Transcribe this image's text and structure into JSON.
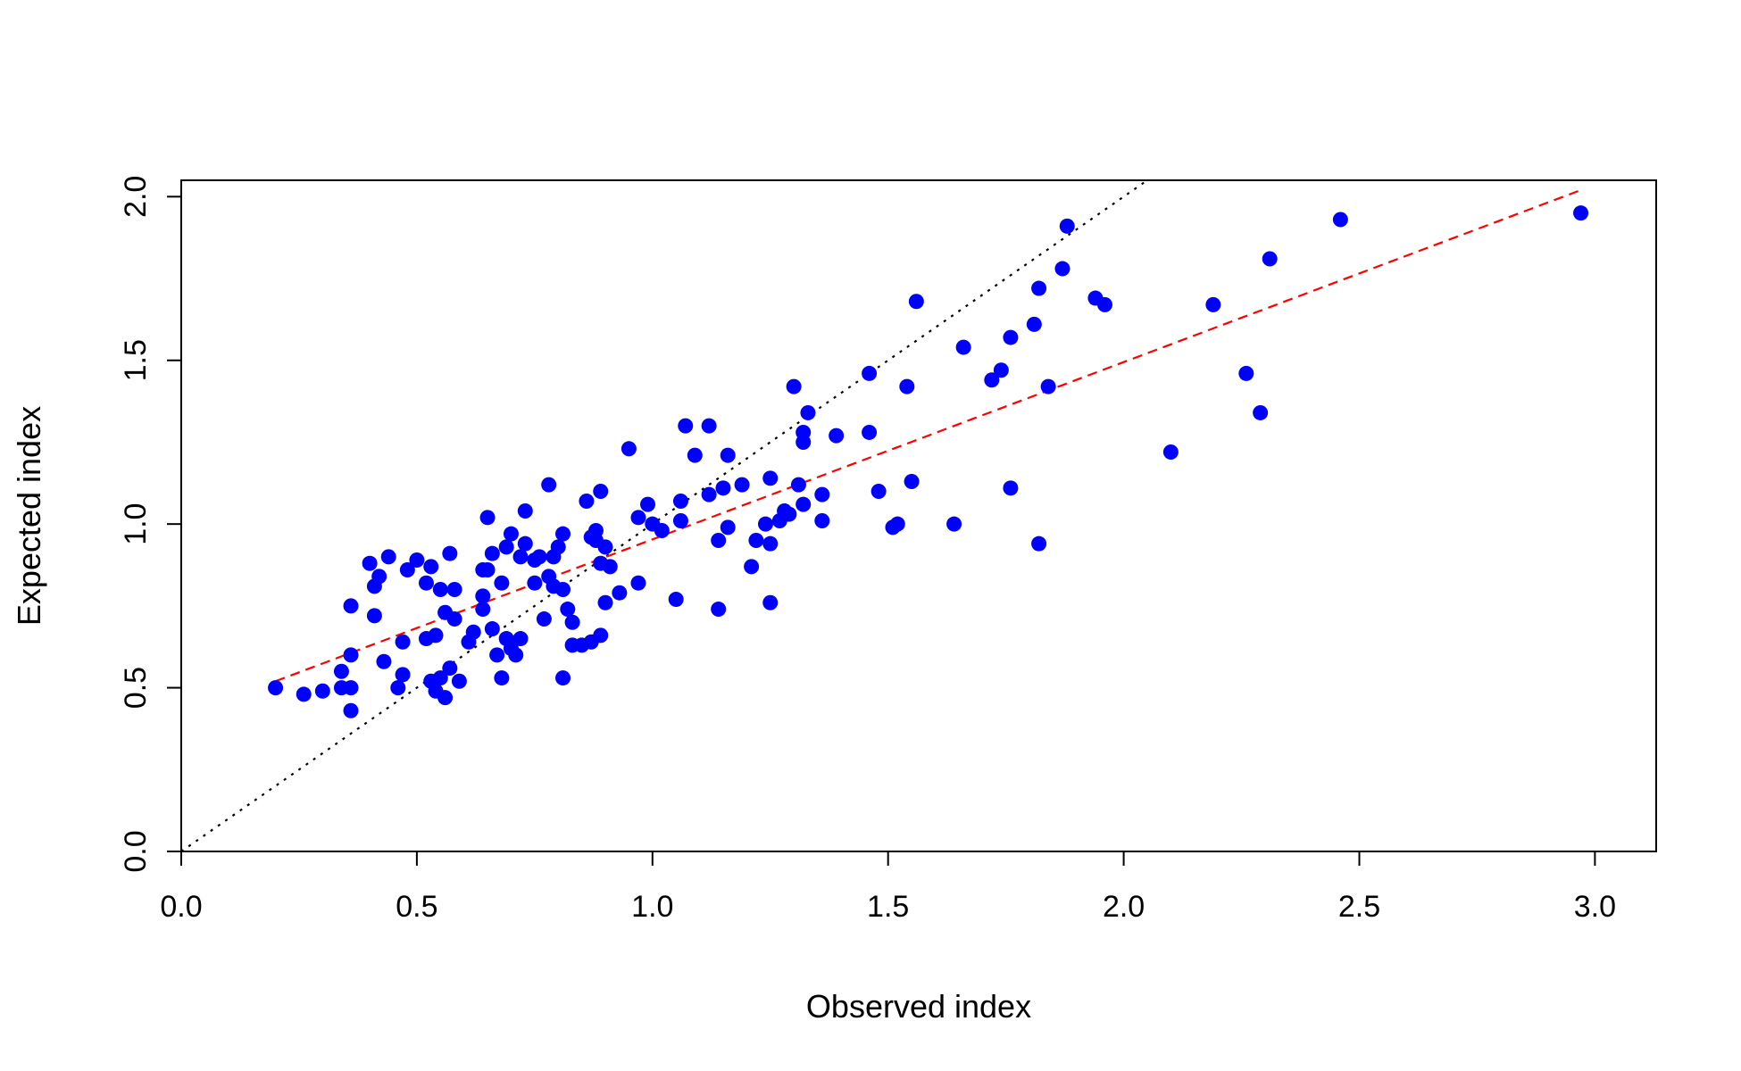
{
  "chart_data": {
    "type": "scatter",
    "title": "",
    "xlabel": "Observed index",
    "ylabel": "Expected index",
    "xlim": [
      0.0,
      3.13
    ],
    "ylim": [
      0.0,
      2.05
    ],
    "xticks": [
      "0.0",
      "0.5",
      "1.0",
      "1.5",
      "2.0",
      "2.5",
      "3.0"
    ],
    "yticks": [
      "0.0",
      "0.5",
      "1.0",
      "1.5",
      "2.0"
    ],
    "grid": false,
    "colors": {
      "points": "#0000ff",
      "identity_line": "#000000",
      "fit_line": "#ff0000",
      "frame": "#000000"
    },
    "reference_lines": [
      {
        "style": "dotted",
        "color": "#000000",
        "x": [
          0.0,
          2.05
        ],
        "y": [
          0.0,
          2.05
        ]
      },
      {
        "style": "dashed",
        "color": "#ff0000",
        "x": [
          0.2,
          2.97
        ],
        "y": [
          0.52,
          2.02
        ]
      }
    ],
    "series": [
      {
        "points": [
          [
            0.2,
            0.5
          ],
          [
            0.26,
            0.48
          ],
          [
            0.3,
            0.49
          ],
          [
            0.34,
            0.55
          ],
          [
            0.34,
            0.5
          ],
          [
            0.36,
            0.5
          ],
          [
            0.36,
            0.43
          ],
          [
            0.36,
            0.6
          ],
          [
            0.36,
            0.75
          ],
          [
            0.4,
            0.88
          ],
          [
            0.41,
            0.72
          ],
          [
            0.41,
            0.81
          ],
          [
            0.42,
            0.84
          ],
          [
            0.43,
            0.58
          ],
          [
            0.44,
            0.9
          ],
          [
            0.46,
            0.5
          ],
          [
            0.47,
            0.54
          ],
          [
            0.47,
            0.64
          ],
          [
            0.48,
            0.86
          ],
          [
            0.5,
            0.89
          ],
          [
            0.52,
            0.82
          ],
          [
            0.52,
            0.65
          ],
          [
            0.53,
            0.87
          ],
          [
            0.53,
            0.52
          ],
          [
            0.54,
            0.49
          ],
          [
            0.54,
            0.66
          ],
          [
            0.55,
            0.53
          ],
          [
            0.55,
            0.8
          ],
          [
            0.56,
            0.73
          ],
          [
            0.56,
            0.47
          ],
          [
            0.57,
            0.91
          ],
          [
            0.57,
            0.56
          ],
          [
            0.58,
            0.8
          ],
          [
            0.58,
            0.71
          ],
          [
            0.59,
            0.52
          ],
          [
            0.61,
            0.64
          ],
          [
            0.62,
            0.67
          ],
          [
            0.64,
            0.74
          ],
          [
            0.64,
            0.86
          ],
          [
            0.64,
            0.78
          ],
          [
            0.65,
            0.86
          ],
          [
            0.65,
            1.02
          ],
          [
            0.66,
            0.91
          ],
          [
            0.66,
            0.68
          ],
          [
            0.67,
            0.6
          ],
          [
            0.68,
            0.82
          ],
          [
            0.68,
            0.53
          ],
          [
            0.69,
            0.65
          ],
          [
            0.69,
            0.93
          ],
          [
            0.7,
            0.97
          ],
          [
            0.7,
            0.62
          ],
          [
            0.71,
            0.6
          ],
          [
            0.72,
            0.65
          ],
          [
            0.72,
            0.9
          ],
          [
            0.73,
            1.04
          ],
          [
            0.73,
            0.94
          ],
          [
            0.75,
            0.82
          ],
          [
            0.75,
            0.89
          ],
          [
            0.76,
            0.9
          ],
          [
            0.77,
            0.71
          ],
          [
            0.78,
            1.12
          ],
          [
            0.78,
            0.84
          ],
          [
            0.79,
            0.81
          ],
          [
            0.79,
            0.9
          ],
          [
            0.8,
            0.93
          ],
          [
            0.81,
            0.97
          ],
          [
            0.81,
            0.8
          ],
          [
            0.81,
            0.53
          ],
          [
            0.82,
            0.74
          ],
          [
            0.83,
            0.7
          ],
          [
            0.83,
            0.63
          ],
          [
            0.85,
            0.63
          ],
          [
            0.86,
            1.07
          ],
          [
            0.87,
            0.96
          ],
          [
            0.87,
            0.64
          ],
          [
            0.88,
            0.98
          ],
          [
            0.88,
            0.95
          ],
          [
            0.89,
            1.1
          ],
          [
            0.89,
            0.66
          ],
          [
            0.89,
            0.88
          ],
          [
            0.9,
            0.76
          ],
          [
            0.9,
            0.93
          ],
          [
            0.91,
            0.87
          ],
          [
            0.93,
            0.79
          ],
          [
            0.95,
            1.23
          ],
          [
            0.97,
            0.82
          ],
          [
            0.97,
            1.02
          ],
          [
            0.99,
            1.06
          ],
          [
            1.0,
            1.0
          ],
          [
            1.02,
            0.98
          ],
          [
            1.05,
            0.77
          ],
          [
            1.06,
            1.07
          ],
          [
            1.06,
            1.01
          ],
          [
            1.07,
            1.3
          ],
          [
            1.09,
            1.21
          ],
          [
            1.12,
            1.3
          ],
          [
            1.12,
            1.09
          ],
          [
            1.14,
            0.74
          ],
          [
            1.14,
            0.95
          ],
          [
            1.15,
            1.11
          ],
          [
            1.16,
            1.21
          ],
          [
            1.16,
            0.99
          ],
          [
            1.19,
            1.12
          ],
          [
            1.21,
            0.87
          ],
          [
            1.22,
            0.95
          ],
          [
            1.24,
            1.0
          ],
          [
            1.25,
            1.14
          ],
          [
            1.25,
            0.94
          ],
          [
            1.25,
            0.76
          ],
          [
            1.27,
            1.01
          ],
          [
            1.28,
            1.04
          ],
          [
            1.29,
            1.03
          ],
          [
            1.3,
            1.42
          ],
          [
            1.31,
            1.12
          ],
          [
            1.32,
            1.28
          ],
          [
            1.32,
            1.25
          ],
          [
            1.32,
            1.06
          ],
          [
            1.33,
            1.34
          ],
          [
            1.36,
            1.09
          ],
          [
            1.36,
            1.01
          ],
          [
            1.39,
            1.27
          ],
          [
            1.46,
            1.28
          ],
          [
            1.46,
            1.46
          ],
          [
            1.48,
            1.1
          ],
          [
            1.51,
            0.99
          ],
          [
            1.52,
            1.0
          ],
          [
            1.54,
            1.42
          ],
          [
            1.55,
            1.13
          ],
          [
            1.56,
            1.68
          ],
          [
            1.64,
            1.0
          ],
          [
            1.66,
            1.54
          ],
          [
            1.72,
            1.44
          ],
          [
            1.74,
            1.47
          ],
          [
            1.76,
            1.57
          ],
          [
            1.76,
            1.11
          ],
          [
            1.81,
            1.61
          ],
          [
            1.82,
            0.94
          ],
          [
            1.82,
            1.72
          ],
          [
            1.84,
            1.42
          ],
          [
            1.87,
            1.78
          ],
          [
            1.88,
            1.91
          ],
          [
            1.94,
            1.69
          ],
          [
            1.96,
            1.67
          ],
          [
            2.1,
            1.22
          ],
          [
            2.19,
            1.67
          ],
          [
            2.26,
            1.46
          ],
          [
            2.29,
            1.34
          ],
          [
            2.31,
            1.81
          ],
          [
            2.46,
            1.93
          ],
          [
            2.97,
            1.95
          ]
        ]
      }
    ]
  }
}
